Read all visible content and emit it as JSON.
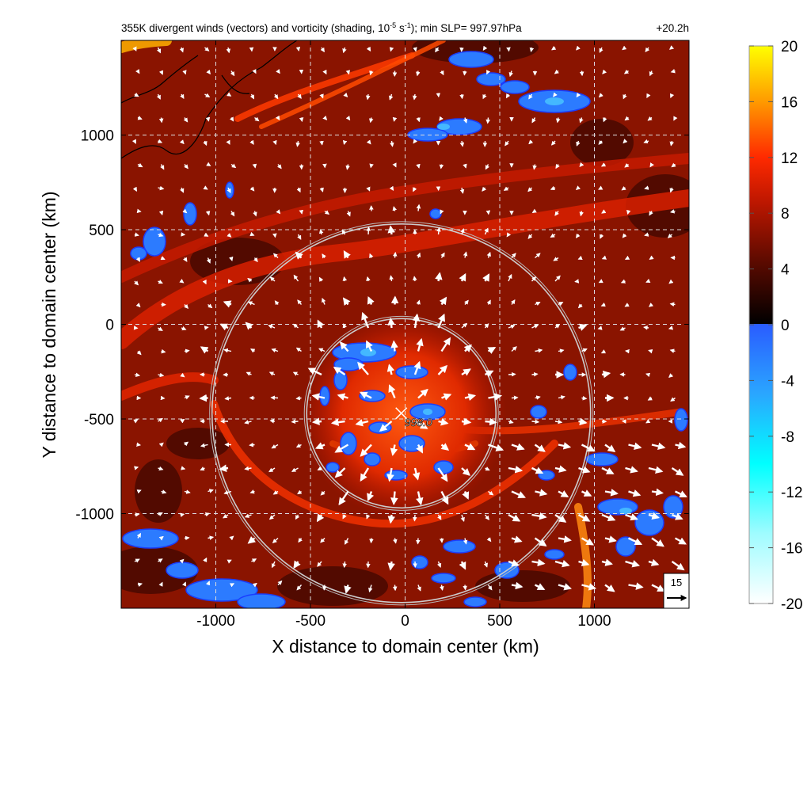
{
  "chart_data": {
    "type": "heatmap",
    "title": "355K divergent winds (vectors) and vorticity (shading, 10",
    "title_exp": "-5",
    "title_mid": " s",
    "title_exp2": "-1",
    "title_tail": "); min SLP= 997.97hPa",
    "time_label": "+20.2h",
    "xlabel": "X distance to domain center (km)",
    "ylabel": "Y distance to domain center (km)",
    "xlim": [
      -1500,
      1500
    ],
    "ylim": [
      -1500,
      1500
    ],
    "xticks": [
      -1000,
      -500,
      0,
      500,
      1000
    ],
    "yticks": [
      -1000,
      -500,
      0,
      500,
      1000
    ],
    "xtick_labels": [
      "-1000",
      "-500",
      "0",
      "500",
      "1000"
    ],
    "ytick_labels": [
      "-1000",
      "-500",
      "0",
      "500",
      "1000"
    ],
    "grid": true,
    "colorbar": {
      "min": -20,
      "max": 20,
      "ticks": [
        "20",
        "16",
        "12",
        "8",
        "4",
        "0",
        "-4",
        "-8",
        "-12",
        "-16",
        "-20"
      ],
      "position": "right"
    },
    "center_marker": {
      "x": -20,
      "y": -470,
      "label": "998.0"
    },
    "rings": [
      {
        "x": -20,
        "y": -470,
        "radius_km": 500
      },
      {
        "x": -20,
        "y": -470,
        "radius_km": 1000
      }
    ],
    "reference_vector": {
      "label": "15",
      "position": "bottom-right"
    },
    "colors": {
      "positive_low": "#000000",
      "positive_mid": "#d61e00",
      "positive_high": "#ffff00",
      "negative_low": "#2e6bff",
      "negative_high": "#ffffff"
    }
  }
}
